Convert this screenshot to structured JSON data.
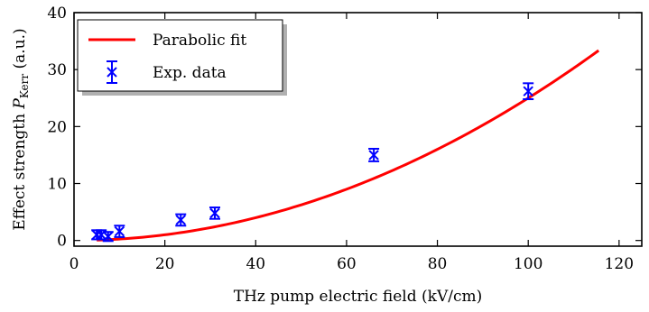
{
  "chart_data": {
    "type": "scatter",
    "xlabel": "THz pump electric field (kV/cm)",
    "ylabel_prefix": "Effect strength ",
    "ylabel_symbol": "P",
    "ylabel_subscript": "Kerr",
    "ylabel_suffix": " (a.u.)",
    "xlim": [
      0,
      125
    ],
    "ylim": [
      -1,
      40
    ],
    "xticks": [
      0,
      20,
      40,
      60,
      80,
      100,
      120
    ],
    "yticks": [
      0,
      10,
      20,
      30,
      40
    ],
    "grid": false,
    "legend_position": "top-left",
    "series": [
      {
        "name": "Parabolic fit",
        "kind": "line",
        "color": "#ff0000",
        "fit": {
          "form": "a*x^2",
          "a": 0.0025
        },
        "x_range": [
          5,
          115.5
        ]
      },
      {
        "name": "Exp. data",
        "kind": "errorbar",
        "color": "#0000ff",
        "x": [
          5,
          6,
          7.5,
          10,
          23.5,
          31,
          66,
          100
        ],
        "y": [
          1.0,
          1.0,
          0.7,
          1.6,
          3.6,
          4.8,
          15.0,
          26.2
        ],
        "yerr": [
          0.8,
          0.8,
          0.8,
          1.0,
          1.0,
          1.0,
          1.1,
          1.4
        ]
      }
    ]
  }
}
